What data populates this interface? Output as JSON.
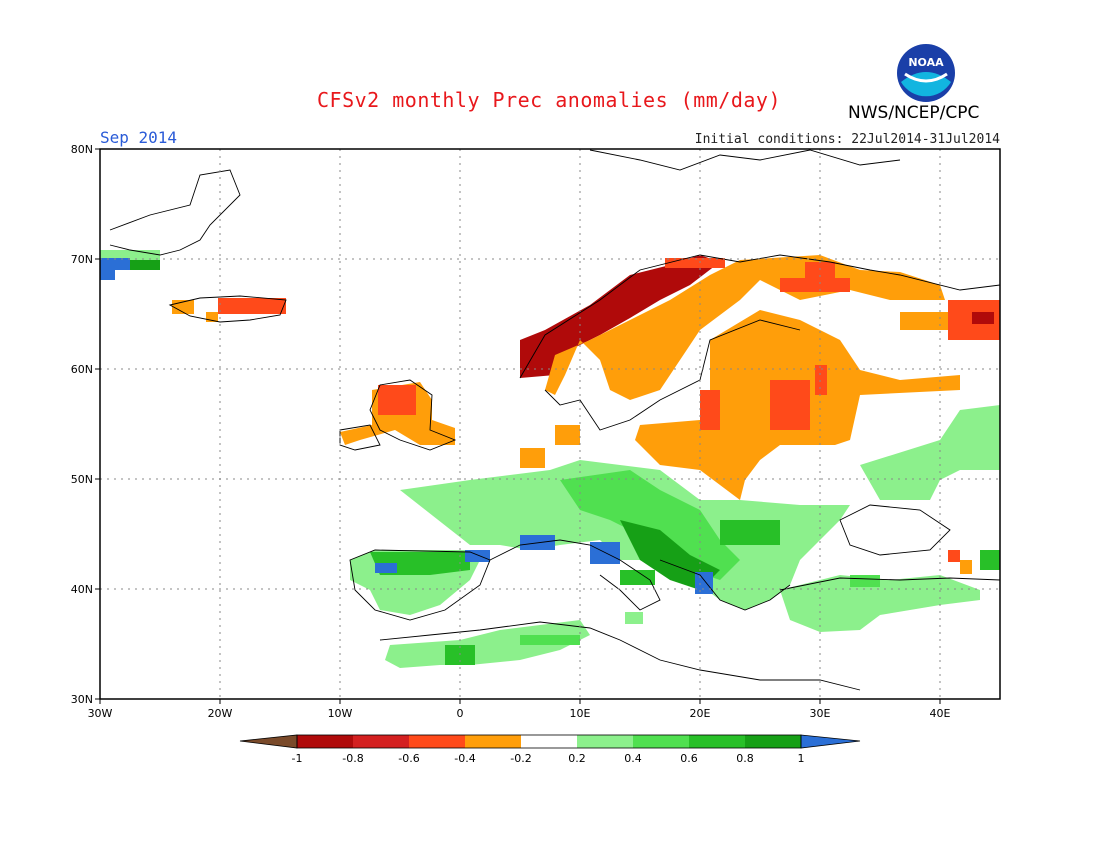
{
  "title": "CFSv2 monthly Prec anomalies (mm/day)",
  "agency": "NWS/NCEP/CPC",
  "logo_text": "NOAA",
  "month_label": "Sep 2014",
  "initial_conditions": "Initial conditions: 22Jul2014-31Jul2014",
  "lat_labels": [
    "80N",
    "70N",
    "60N",
    "50N",
    "40N",
    "30N"
  ],
  "lon_labels": [
    "30W",
    "20W",
    "10W",
    "0",
    "10E",
    "20E",
    "30E",
    "40E"
  ],
  "colorbar": {
    "labels": [
      "-1",
      "-0.8",
      "-0.6",
      "-0.4",
      "-0.2",
      "0.2",
      "0.4",
      "0.6",
      "0.8",
      "1"
    ],
    "colors": [
      "#7a4a2a",
      "#b00a0a",
      "#d42020",
      "#ff4a1a",
      "#ff9e0a",
      "#ffffff",
      "#8cf08c",
      "#50e050",
      "#28c028",
      "#16a016",
      "#2b6fd6"
    ]
  }
}
